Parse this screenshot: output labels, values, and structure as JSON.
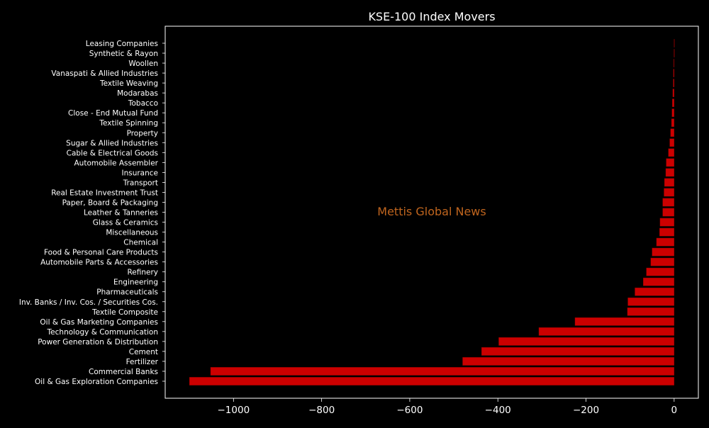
{
  "colors": {
    "background": "#000000",
    "bar": "#cc0000",
    "bar_edge": "#8b0000",
    "text": "#ffffff",
    "watermark": "#c0651e"
  },
  "chart_data": {
    "type": "bar",
    "orientation": "horizontal",
    "title": "KSE-100 Index Movers",
    "xlabel": "",
    "ylabel": "",
    "watermark": "Mettis Global News",
    "xlim": [
      -1155,
      55
    ],
    "xticks": [
      -1000,
      -800,
      -600,
      -400,
      -200,
      0
    ],
    "xtick_labels": [
      "−1000",
      "−800",
      "−600",
      "−400",
      "−200",
      "0"
    ],
    "grid": false,
    "categories": [
      "Oil & Gas Exploration Companies",
      "Commercial Banks",
      "Fertilizer",
      "Cement",
      "Power Generation & Distribution",
      "Technology & Communication",
      "Oil & Gas Marketing Companies",
      "Textile Composite",
      "Inv. Banks / Inv. Cos. / Securities Cos.",
      "Pharmaceuticals",
      "Engineering",
      "Refinery",
      "Automobile Parts & Accessories",
      "Food & Personal Care Products",
      "Chemical",
      "Miscellaneous",
      "Glass & Ceramics",
      "Leather & Tanneries",
      "Paper, Board & Packaging",
      "Real Estate Investment Trust",
      "Transport",
      "Insurance",
      "Automobile Assembler",
      "Cable & Electrical Goods",
      "Sugar & Allied Industries",
      "Property",
      "Textile Spinning",
      "Close - End Mutual Fund",
      "Tobacco",
      "Modarabas",
      "Textile Weaving",
      "Vanaspati & Allied Industries",
      "Woollen",
      "Synthetic & Rayon",
      "Leasing Companies"
    ],
    "values": [
      -1100,
      -1052,
      -480,
      -437,
      -398,
      -307,
      -225,
      -106,
      -105,
      -89,
      -70,
      -63,
      -53,
      -50,
      -40,
      -33,
      -32,
      -26,
      -26,
      -23,
      -22,
      -19,
      -18,
      -13,
      -10,
      -8,
      -6,
      -5,
      -4,
      -3,
      -2,
      -1.5,
      -1,
      -0.3,
      -0.2
    ]
  }
}
